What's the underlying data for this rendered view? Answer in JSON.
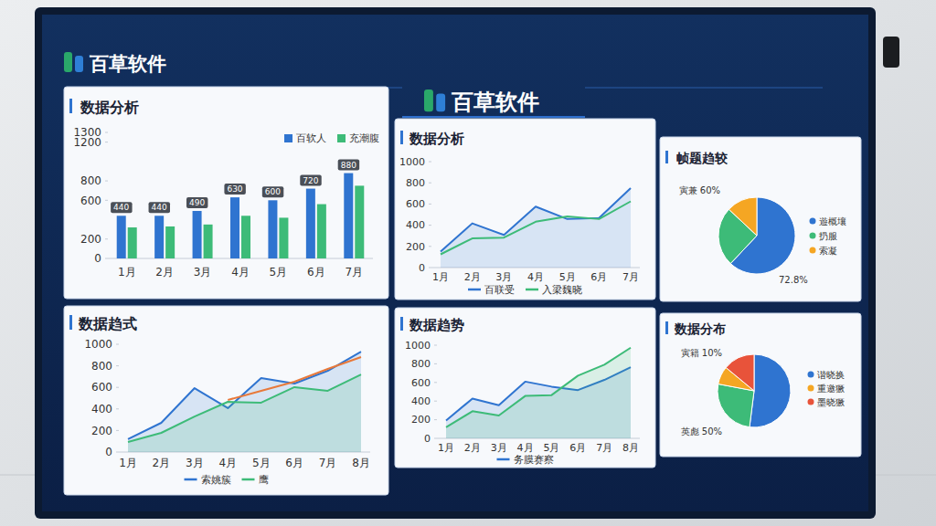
{
  "header": {
    "logo": "百草软件",
    "title": "百草软件"
  },
  "chart_data": [
    {
      "type": "bar",
      "title": "数据分析",
      "categories": [
        "1月",
        "2月",
        "3月",
        "4月",
        "5月",
        "6月",
        "7月"
      ],
      "series": [
        {
          "name": "百软人",
          "color": "#2f74d0",
          "values": [
            440,
            440,
            490,
            630,
            600,
            720,
            880
          ],
          "data_labels": true
        },
        {
          "name": "充潮腹",
          "color": "#3dbb78",
          "values": [
            320,
            330,
            350,
            440,
            420,
            560,
            750
          ]
        }
      ],
      "ylim": [
        0,
        1300
      ],
      "yticks": [
        0,
        200,
        600,
        800,
        1200,
        1300
      ],
      "grid": false,
      "legend": "top-right"
    },
    {
      "type": "line",
      "title": "数据分析",
      "categories": [
        "1月",
        "2月",
        "3月",
        "4月",
        "5月",
        "6月",
        "7月"
      ],
      "series": [
        {
          "name": "百联受",
          "color": "#2f74d0",
          "type": "area",
          "values": [
            150,
            417,
            308,
            575,
            458,
            467,
            750
          ]
        },
        {
          "name": "入梁魏晓",
          "color": "#3dbb78",
          "type": "line",
          "values": [
            125,
            275,
            283,
            433,
            483,
            458,
            625
          ]
        }
      ],
      "ylim": [
        0,
        1000
      ],
      "yticks": [
        0,
        200,
        400,
        600,
        800,
        1000
      ],
      "grid": false,
      "legend": "bottom"
    },
    {
      "type": "pie",
      "title": "帧题趋较",
      "categories": [
        "遊概壤",
        "扔服",
        "索凝"
      ],
      "values": [
        62,
        25,
        13
      ],
      "colors": [
        "#2f74d0",
        "#3dbb78",
        "#f5a623"
      ],
      "legend": "right",
      "annotations": [
        "寅兼 60%",
        "72.8%"
      ]
    },
    {
      "type": "line",
      "title": "数据趋式",
      "categories": [
        "1月",
        "2月",
        "3月",
        "4月",
        "5月",
        "6月",
        "7月",
        "8月"
      ],
      "series": [
        {
          "name": "索姚簇",
          "color": "#2f74d0",
          "type": "area",
          "values": [
            119,
            271,
            593,
            407,
            686,
            636,
            754,
            932
          ]
        },
        {
          "name": "鹰",
          "color": "#3dbb78",
          "type": "area",
          "values": [
            93,
            178,
            330,
            466,
            458,
            602,
            568,
            720
          ]
        },
        {
          "color": "#e8793a",
          "type": "line",
          "values": [
            null,
            null,
            null,
            483,
            568,
            653,
            771,
            881
          ]
        }
      ],
      "ylim": [
        0,
        1000
      ],
      "yticks": [
        0,
        200,
        400,
        600,
        800,
        1000
      ],
      "grid": false,
      "legend": "bottom"
    },
    {
      "type": "line",
      "title": "数据趋势",
      "categories": [
        "1月",
        "2月",
        "3月",
        "4月",
        "5月",
        "6月",
        "7月",
        "8月"
      ],
      "series": [
        {
          "name": "务膜赛察",
          "color": "#2f74d0",
          "type": "area",
          "values": [
            191,
            427,
            355,
            609,
            555,
            518,
            627,
            764
          ]
        },
        {
          "color": "#3dbb78",
          "type": "area",
          "values": [
            118,
            291,
            245,
            455,
            464,
            673,
            791,
            973
          ]
        }
      ],
      "ylim": [
        0,
        1000
      ],
      "yticks": [
        0,
        200,
        400,
        600,
        800,
        1000
      ],
      "grid": false,
      "legend": "bottom"
    },
    {
      "type": "pie",
      "title": "数据分布",
      "categories": [
        "谐晓换",
        null,
        "重邀獗",
        "墨晓獗"
      ],
      "values": [
        52,
        26,
        8,
        14
      ],
      "colors": [
        "#2f74d0",
        "#3dbb78",
        "#f5a623",
        "#e8533a"
      ],
      "legend": "right",
      "annotations": [
        "寅籍 10%",
        "英彪 50%"
      ]
    }
  ]
}
